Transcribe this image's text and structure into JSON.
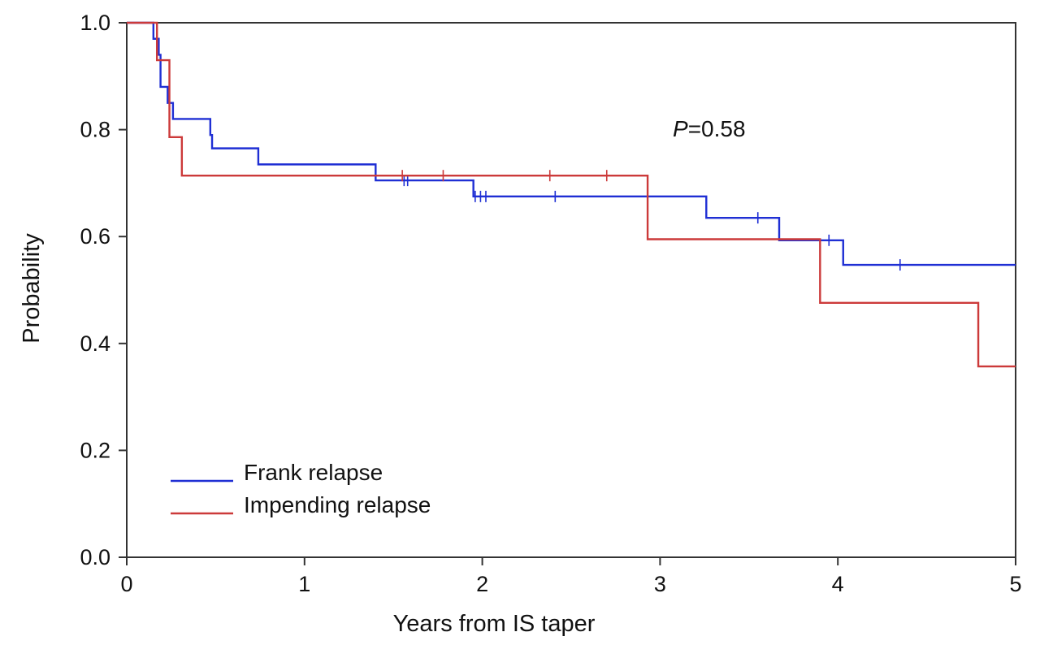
{
  "chart_data": {
    "type": "line",
    "title": "",
    "xlabel": "Years from IS taper",
    "ylabel": "Probability",
    "xlim": [
      0,
      5
    ],
    "ylim": [
      0,
      1.0
    ],
    "xticks": [
      "0",
      "1",
      "2",
      "3",
      "4",
      "5"
    ],
    "yticks": [
      "0.0",
      "0.2",
      "0.4",
      "0.6",
      "0.8",
      "1.0"
    ],
    "grid": false,
    "legend": "bottom-left",
    "annotation": {
      "italic": "P",
      "text": "=0.58"
    },
    "series": [
      {
        "name": "Frank relapse",
        "color": "#1f2fd4",
        "steps": [
          [
            0.0,
            1.0
          ],
          [
            0.15,
            0.97
          ],
          [
            0.18,
            0.94
          ],
          [
            0.19,
            0.88
          ],
          [
            0.23,
            0.85
          ],
          [
            0.26,
            0.82
          ],
          [
            0.47,
            0.79
          ],
          [
            0.48,
            0.765
          ],
          [
            0.74,
            0.735
          ],
          [
            1.4,
            0.705
          ],
          [
            1.95,
            0.675
          ],
          [
            3.26,
            0.635
          ],
          [
            3.67,
            0.593
          ],
          [
            4.03,
            0.547
          ],
          [
            5.0,
            0.547
          ]
        ],
        "censor_x": [
          1.56,
          1.58,
          1.96,
          1.99,
          2.02,
          2.41,
          3.55,
          3.95,
          4.35
        ]
      },
      {
        "name": "Impending relapse",
        "color": "#cc3a3a",
        "steps": [
          [
            0.0,
            1.0
          ],
          [
            0.17,
            0.93
          ],
          [
            0.22,
            0.93
          ],
          [
            0.24,
            0.786
          ],
          [
            0.31,
            0.714
          ],
          [
            2.93,
            0.595
          ],
          [
            3.9,
            0.476
          ],
          [
            4.79,
            0.357
          ],
          [
            5.0,
            0.357
          ]
        ],
        "censor_x": [
          1.55,
          1.78,
          2.38,
          2.7
        ]
      }
    ]
  }
}
